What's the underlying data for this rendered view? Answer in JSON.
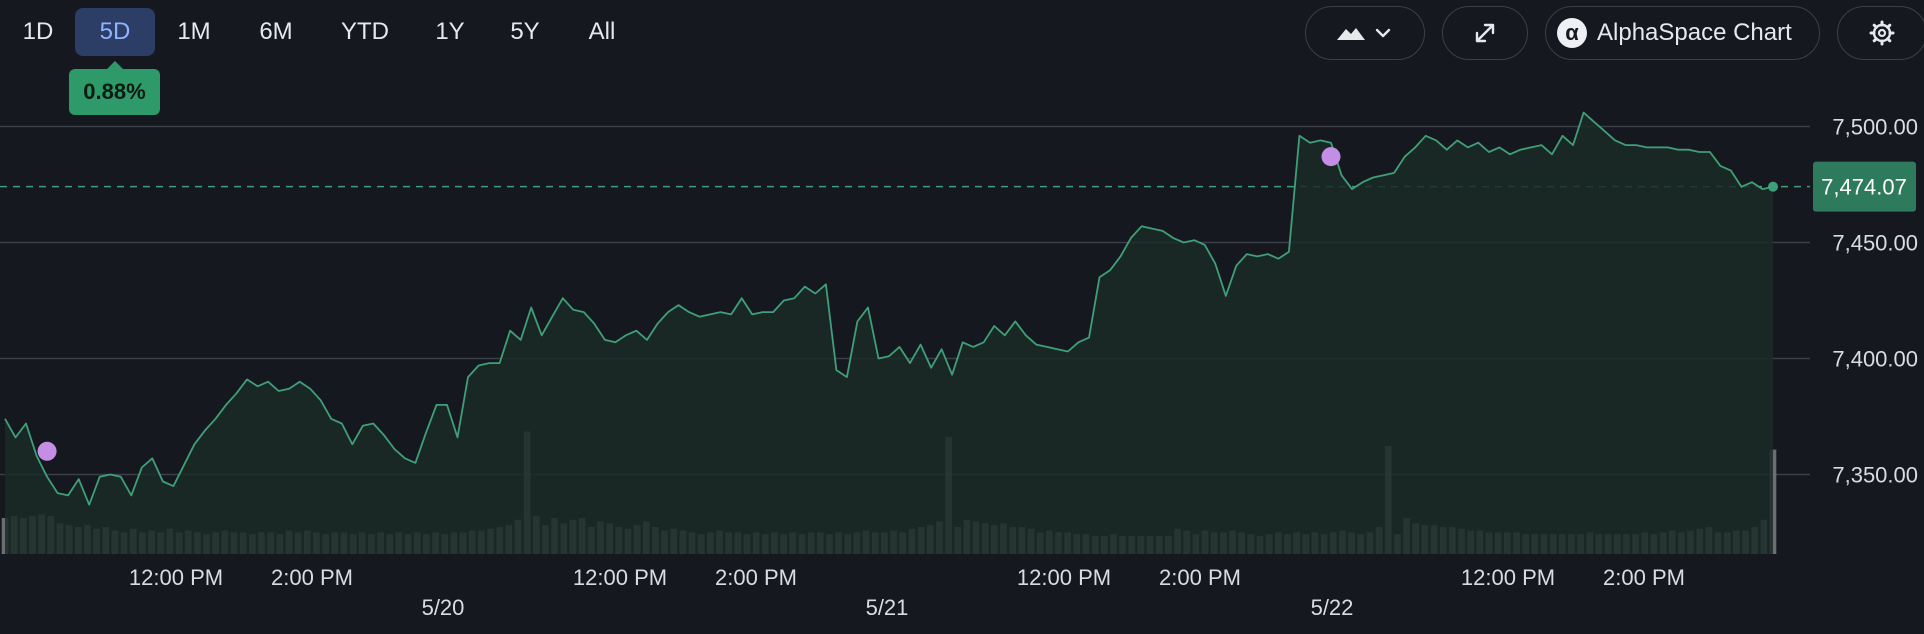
{
  "toolbar": {
    "ranges": [
      "1D",
      "5D",
      "1M",
      "6M",
      "YTD",
      "1Y",
      "5Y",
      "All"
    ],
    "active_range": "5D",
    "change_badge": "0.88%",
    "chart_type_icon": "mountain-area-icon",
    "dropdown_icon": "chevron-down-icon",
    "expand_icon": "expand-arrows-icon",
    "brand_label": "AlphaSpace Chart",
    "brand_icon": "α",
    "settings_icon": "gear-icon"
  },
  "colors": {
    "background": "#15181e",
    "line": "#3f9f78",
    "area_fill": "#1b2b27",
    "volume": "#7a7d82",
    "marker": "#c58ee6",
    "price_tag": "#2e7a5c",
    "active_tab": "#2c3d66",
    "active_tab_text": "#8fb4ff",
    "grid": "#3b4048"
  },
  "chart_data": {
    "type": "area",
    "title": "",
    "xlabel": "",
    "ylabel": "",
    "ylim": [
      7316,
      7527
    ],
    "yticks": [
      7350,
      7400,
      7450,
      7500
    ],
    "ytick_labels": [
      "7,350.00",
      "7,400.00",
      "7,450.00",
      "7,500.00"
    ],
    "last_price": 7474.07,
    "last_price_label": "7,474.07",
    "x_time_labels": [
      "12:00 PM",
      "2:00 PM",
      "12:00 PM",
      "2:00 PM",
      "12:00 PM",
      "2:00 PM",
      "12:00 PM",
      "2:00 PM"
    ],
    "x_date_labels": [
      "5/20",
      "5/21",
      "5/22"
    ],
    "series": [
      {
        "values": [
          7374,
          7366,
          7372,
          7358,
          7349,
          7342,
          7341,
          7348,
          7337,
          7349,
          7350,
          7349,
          7341,
          7353,
          7357,
          7347,
          7345,
          7354,
          7363,
          7369,
          7374,
          7380,
          7385,
          7391,
          7388,
          7390,
          7386,
          7387,
          7390,
          7387,
          7382,
          7374,
          7372,
          7363,
          7371,
          7372,
          7367,
          7361,
          7357,
          7355,
          7368,
          7380,
          7380,
          7366,
          7392,
          7397,
          7398,
          7398,
          7412,
          7408,
          7422,
          7410,
          7418,
          7426,
          7421,
          7420,
          7415,
          7408,
          7407,
          7410,
          7412,
          7408,
          7415,
          7420,
          7423,
          7420,
          7418,
          7419,
          7420,
          7419,
          7426,
          7419,
          7420,
          7420,
          7425,
          7426,
          7431,
          7428,
          7432,
          7395,
          7392,
          7416,
          7422,
          7400,
          7401,
          7405,
          7398,
          7406,
          7396,
          7404,
          7393,
          7407,
          7405,
          7407,
          7414,
          7410,
          7416,
          7410,
          7406,
          7405,
          7404,
          7403,
          7407,
          7409,
          7435,
          7438,
          7444,
          7452,
          7457,
          7456,
          7455,
          7452,
          7450,
          7451,
          7449,
          7441,
          7427,
          7440,
          7445,
          7444,
          7445,
          7443,
          7446,
          7496,
          7493,
          7494,
          7493,
          7479,
          7473,
          7476,
          7478,
          7479,
          7480,
          7487,
          7491,
          7496,
          7494,
          7490,
          7494,
          7491,
          7493,
          7489,
          7491,
          7488,
          7490,
          7491,
          7492,
          7488,
          7496,
          7492,
          7506,
          7502,
          7498,
          7494,
          7492,
          7492,
          7491,
          7491,
          7491,
          7490,
          7490,
          7489,
          7489,
          7483,
          7481,
          7474,
          7476,
          7473,
          7474
        ]
      }
    ],
    "volume": {
      "values": [
        20,
        21,
        20,
        21,
        22,
        21,
        17,
        16,
        15,
        16,
        14,
        15,
        13,
        12,
        14,
        12,
        13,
        12,
        14,
        12,
        13,
        12,
        11,
        12,
        13,
        12,
        12,
        11,
        12,
        12,
        11,
        13,
        12,
        13,
        12,
        11,
        12,
        12,
        11,
        12,
        11,
        12,
        11,
        12,
        11,
        12,
        11,
        12,
        11,
        12,
        12,
        13,
        13,
        14,
        15,
        16,
        19,
        68,
        21,
        16,
        20,
        17,
        19,
        20,
        15,
        18,
        17,
        15,
        14,
        16,
        18,
        15,
        13,
        14,
        13,
        12,
        11,
        12,
        13,
        12,
        12,
        11,
        12,
        11,
        12,
        11,
        12,
        11,
        12,
        12,
        11,
        12,
        11,
        12,
        13,
        12,
        12,
        13,
        12,
        14,
        15,
        16,
        18,
        65,
        15,
        19,
        18,
        17,
        16,
        17,
        15,
        15,
        14,
        12,
        13,
        12,
        12,
        11,
        11,
        10,
        10,
        11,
        10,
        10,
        10,
        10,
        10,
        10,
        14,
        13,
        11,
        13,
        12,
        12,
        13,
        12,
        11,
        10,
        11,
        12,
        11,
        12,
        11,
        12,
        11,
        12,
        13,
        12,
        11,
        12,
        15,
        60,
        11,
        20,
        17,
        16,
        16,
        15,
        15,
        14,
        13,
        13,
        12,
        12,
        12,
        12,
        11,
        11,
        11,
        11,
        11,
        11,
        11,
        12,
        11,
        11,
        11,
        11,
        11,
        12,
        11,
        12,
        13,
        12,
        13,
        14,
        15,
        12,
        12,
        13,
        13,
        15,
        19,
        58
      ]
    },
    "markers": [
      {
        "index": 4,
        "value": 7360
      },
      {
        "index": 126,
        "value": 7487
      }
    ],
    "grid": true,
    "legend": "none"
  }
}
